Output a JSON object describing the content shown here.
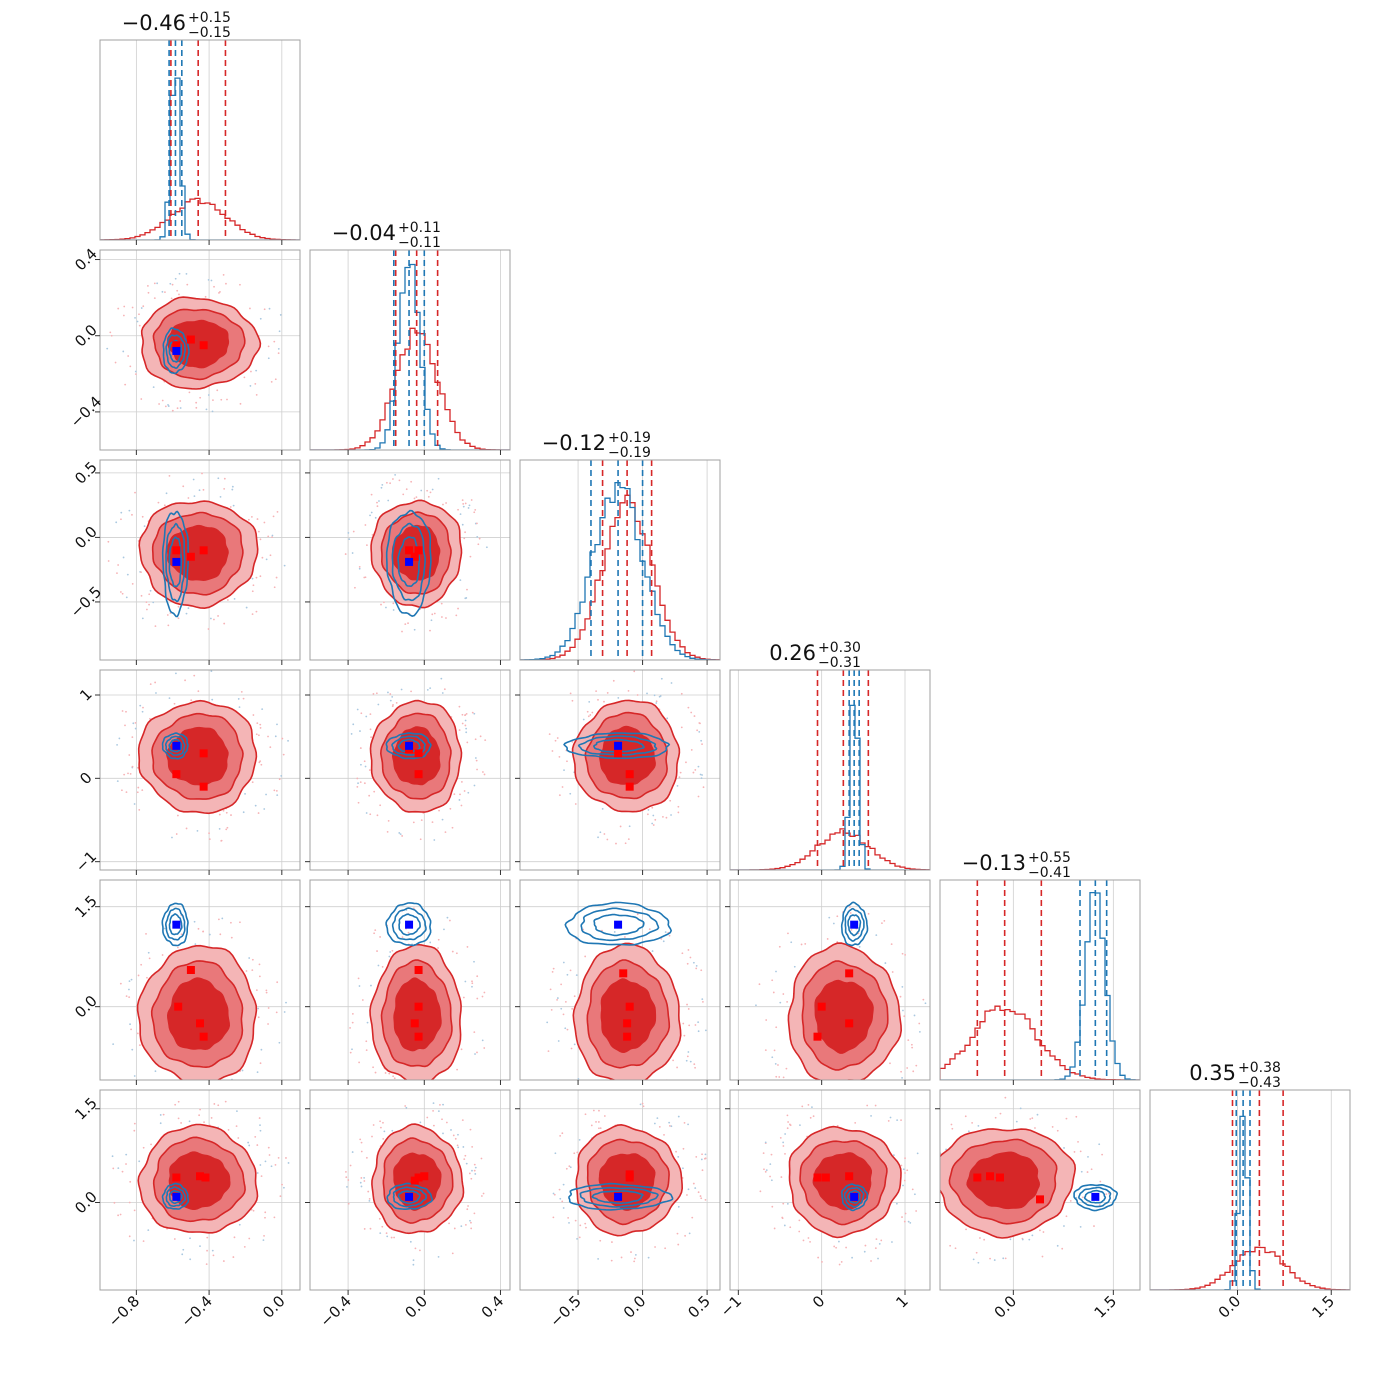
{
  "chart_data": {
    "type": "corner",
    "n_params": 6,
    "colors": {
      "red": "#d62728",
      "red_light": "#f4b5b6",
      "red_mid": "#e9787a",
      "blue": "#1f77b4",
      "marker_red": "#ff0000",
      "marker_blue": "#0000ff"
    },
    "params": [
      {
        "index": 0,
        "range": [
          -1.0,
          0.1
        ],
        "ticks": [
          -0.8,
          -0.4,
          0.0
        ],
        "tick_labels": [
          "−0.8",
          "−0.4",
          "0.0"
        ],
        "title_value": "−0.46",
        "title_plus": "+0.15",
        "title_minus": "−0.15",
        "red": {
          "mean": -0.46,
          "sd": 0.15
        },
        "blue": {
          "mean": -0.585,
          "sd": 0.025
        },
        "truth": -0.58,
        "quantiles_red": [
          -0.61,
          -0.46,
          -0.31
        ],
        "quantiles_blue": [
          -0.62,
          -0.585,
          -0.55
        ]
      },
      {
        "index": 1,
        "range": [
          -0.6,
          0.45
        ],
        "ticks": [
          -0.4,
          0.0,
          0.4
        ],
        "tick_labels": [
          "−0.4",
          "0.0",
          "0.4"
        ],
        "title_value": "−0.04",
        "title_plus": "+0.11",
        "title_minus": "−0.11",
        "red": {
          "mean": -0.04,
          "sd": 0.11
        },
        "blue": {
          "mean": -0.08,
          "sd": 0.055
        },
        "truth": -0.08,
        "quantiles_red": [
          -0.15,
          -0.04,
          0.07
        ],
        "quantiles_blue": [
          -0.16,
          -0.08,
          0.0
        ]
      },
      {
        "index": 2,
        "range": [
          -0.95,
          0.6
        ],
        "ticks": [
          -0.5,
          0.0,
          0.5
        ],
        "tick_labels": [
          "−0.5",
          "0.0",
          "0.5"
        ],
        "title_value": "−0.12",
        "title_plus": "+0.19",
        "title_minus": "−0.19",
        "red": {
          "mean": -0.12,
          "sd": 0.19
        },
        "blue": {
          "mean": -0.19,
          "sd": 0.19
        },
        "truth": -0.19,
        "quantiles_red": [
          -0.31,
          -0.12,
          0.07
        ],
        "quantiles_blue": [
          -0.4,
          -0.19,
          0.0
        ]
      },
      {
        "index": 3,
        "range": [
          -1.1,
          1.3
        ],
        "ticks": [
          -1,
          0,
          1
        ],
        "tick_labels": [
          "−1",
          "0",
          "1"
        ],
        "title_value": "0.26",
        "title_plus": "+0.30",
        "title_minus": "−0.31",
        "red": {
          "mean": 0.26,
          "sd": 0.31
        },
        "blue": {
          "mean": 0.39,
          "sd": 0.05
        },
        "truth": 0.39,
        "quantiles_red": [
          -0.05,
          0.26,
          0.56
        ],
        "quantiles_blue": [
          0.33,
          0.39,
          0.45
        ]
      },
      {
        "index": 4,
        "range": [
          -1.1,
          1.9
        ],
        "ticks": [
          0.0,
          1.5
        ],
        "tick_labels": [
          "0.0",
          "1.5"
        ],
        "title_value": "−0.13",
        "title_plus": "+0.55",
        "title_minus": "−0.41",
        "red": {
          "mean": -0.13,
          "sd": 0.48
        },
        "blue": {
          "mean": 1.23,
          "sd": 0.15
        },
        "truth": 1.23,
        "quantiles_red": [
          -0.54,
          -0.13,
          0.42
        ],
        "quantiles_blue": [
          1.0,
          1.23,
          1.4
        ]
      },
      {
        "index": 5,
        "range": [
          -1.4,
          1.8
        ],
        "ticks": [
          0.0,
          1.5
        ],
        "tick_labels": [
          "0.0",
          "1.5"
        ],
        "title_value": "0.35",
        "title_plus": "+0.38",
        "title_minus": "−0.43",
        "red": {
          "mean": 0.35,
          "sd": 0.4
        },
        "blue": {
          "mean": 0.09,
          "sd": 0.07
        },
        "truth": 0.09,
        "quantiles_red": [
          -0.08,
          0.35,
          0.73
        ],
        "quantiles_blue": [
          -0.02,
          0.09,
          0.2
        ]
      }
    ],
    "red_markers_note": "Red square markers mark sample/component points in each 2D panel",
    "red_markers": [
      {
        "row": 1,
        "col": 0,
        "points": [
          [
            -0.58,
            -0.05
          ],
          [
            -0.43,
            -0.05
          ],
          [
            -0.5,
            -0.02
          ]
        ]
      },
      {
        "row": 2,
        "col": 0,
        "points": [
          [
            -0.58,
            -0.1
          ],
          [
            -0.5,
            -0.15
          ],
          [
            -0.43,
            -0.1
          ]
        ]
      },
      {
        "row": 2,
        "col": 1,
        "points": [
          [
            -0.08,
            -0.1
          ],
          [
            -0.03,
            -0.1
          ],
          [
            -0.05,
            -0.15
          ]
        ]
      },
      {
        "row": 3,
        "col": 0,
        "points": [
          [
            -0.58,
            0.05
          ],
          [
            -0.43,
            -0.1
          ],
          [
            -0.43,
            0.3
          ]
        ]
      },
      {
        "row": 3,
        "col": 1,
        "points": [
          [
            -0.03,
            0.3
          ],
          [
            -0.03,
            0.05
          ],
          [
            -0.08,
            0.35
          ]
        ]
      },
      {
        "row": 3,
        "col": 2,
        "points": [
          [
            -0.1,
            0.05
          ],
          [
            -0.1,
            -0.1
          ],
          [
            -0.19,
            0.3
          ]
        ]
      },
      {
        "row": 4,
        "col": 0,
        "points": [
          [
            -0.57,
            0.0
          ],
          [
            -0.5,
            0.55
          ],
          [
            -0.45,
            -0.25
          ],
          [
            -0.43,
            -0.45
          ]
        ]
      },
      {
        "row": 4,
        "col": 1,
        "points": [
          [
            -0.03,
            0.55
          ],
          [
            -0.03,
            0.0
          ],
          [
            -0.05,
            -0.25
          ],
          [
            -0.03,
            -0.45
          ]
        ]
      },
      {
        "row": 4,
        "col": 2,
        "points": [
          [
            -0.15,
            0.5
          ],
          [
            -0.1,
            0.0
          ],
          [
            -0.12,
            -0.25
          ],
          [
            -0.12,
            -0.45
          ]
        ]
      },
      {
        "row": 4,
        "col": 3,
        "points": [
          [
            0.33,
            0.5
          ],
          [
            0.33,
            -0.25
          ],
          [
            0.0,
            0.0
          ],
          [
            -0.05,
            -0.45
          ]
        ]
      },
      {
        "row": 5,
        "col": 0,
        "points": [
          [
            -0.58,
            0.4
          ],
          [
            -0.45,
            0.42
          ],
          [
            -0.42,
            0.4
          ]
        ]
      },
      {
        "row": 5,
        "col": 1,
        "points": [
          [
            -0.03,
            0.4
          ],
          [
            0.0,
            0.42
          ],
          [
            -0.05,
            0.35
          ]
        ]
      },
      {
        "row": 5,
        "col": 2,
        "points": [
          [
            -0.1,
            0.4
          ],
          [
            -0.1,
            0.45
          ],
          [
            -0.19,
            0.1
          ]
        ]
      },
      {
        "row": 5,
        "col": 3,
        "points": [
          [
            -0.05,
            0.4
          ],
          [
            0.05,
            0.4
          ],
          [
            0.33,
            0.42
          ]
        ]
      },
      {
        "row": 5,
        "col": 4,
        "points": [
          [
            -0.54,
            0.4
          ],
          [
            -0.35,
            0.42
          ],
          [
            -0.2,
            0.4
          ],
          [
            0.4,
            0.05
          ]
        ]
      }
    ]
  }
}
